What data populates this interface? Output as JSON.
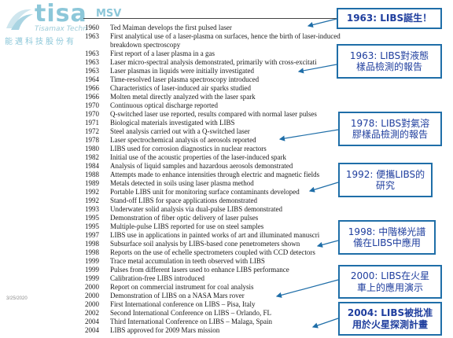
{
  "logo": {
    "wordmark": "tisa",
    "wordmark_suffix": "MSV",
    "tagline": "Tisamax Techn",
    "company_cn": "能邁科技股份有"
  },
  "footer": {
    "date": "3/25/2020"
  },
  "timeline": [
    {
      "year": "1960",
      "event": "Ted Maiman develops the first pulsed laser"
    },
    {
      "year": "1963",
      "event": "First analytical use of a laser-plasma on surfaces, hence the birth of laser-induced"
    },
    {
      "year": "",
      "event": "breakdown spectroscopy"
    },
    {
      "year": "1963",
      "event": "First report of a laser plasma in a gas"
    },
    {
      "year": "1963",
      "event": "Laser micro-spectral analysis demonstrated, primarily with cross-excitati"
    },
    {
      "year": "1963",
      "event": "Laser plasmas in liquids were initially investigated"
    },
    {
      "year": "1964",
      "event": "Time-resolved laser plasma spectroscopy introduced"
    },
    {
      "year": "1966",
      "event": "Characteristics of laser-induced air sparks studied"
    },
    {
      "year": "1966",
      "event": "Molten metal directly analyzed with the laser spark"
    },
    {
      "year": "1970",
      "event": "Continuous optical discharge reported"
    },
    {
      "year": "1970",
      "event": "Q-switched laser use reported, results compared with normal laser pulses"
    },
    {
      "year": "1971",
      "event": "Biological materials investigated with LIBS"
    },
    {
      "year": "1972",
      "event": "Steel analysis carried out with a Q-switched laser"
    },
    {
      "year": "1978",
      "event": "Laser spectrochemical analysis of aerosols reported"
    },
    {
      "year": "1980",
      "event": "LIBS used for corrosion diagnostics in nuclear reactors"
    },
    {
      "year": "1982",
      "event": "Initial use of the acoustic properties of the laser-induced spark"
    },
    {
      "year": "1984",
      "event": "Analysis of liquid samples and hazardous aerosols demonstrated"
    },
    {
      "year": "1988",
      "event": "Attempts made to enhance intensities through electric and magnetic fields"
    },
    {
      "year": "1989",
      "event": "Metals detected in soils using laser plasma method"
    },
    {
      "year": "1992",
      "event": "Portable LIBS unit for monitoring surface contaminants developed"
    },
    {
      "year": "1992",
      "event": "Stand-off LIBS for space applications demonstrated"
    },
    {
      "year": "1993",
      "event": "Underwater solid analysis via dual-pulse LIBS demonstrated"
    },
    {
      "year": "1995",
      "event": "Demonstration of fiber optic delivery of laser pulses"
    },
    {
      "year": "1995",
      "event": "Multiple-pulse LIBS reported for use on steel samples"
    },
    {
      "year": "1997",
      "event": "LIBS use in applications in painted works of art and illuminated manuscri"
    },
    {
      "year": "1998",
      "event": "Subsurface soil analysis by LIBS-based cone penetrometers shown"
    },
    {
      "year": "1998",
      "event": "Reports on the use of echelle spectrometers coupled with CCD detectors"
    },
    {
      "year": "1999",
      "event": "Trace metal accumulation in teeth observed with LIBS"
    },
    {
      "year": "1999",
      "event": "Pulses from different lasers used to enhance LIBS performance"
    },
    {
      "year": "1999",
      "event": "Calibration-free LIBS introduced"
    },
    {
      "year": "2000",
      "event": "Report on commercial instrument for coal analysis"
    },
    {
      "year": "2000",
      "event": "Demonstration of LIBS on a NASA Mars rover"
    },
    {
      "year": "2000",
      "event": "First International conference on LIBS – Pisa, Italy"
    },
    {
      "year": "2002",
      "event": "Second International Conference on LIBS – Orlando, FL"
    },
    {
      "year": "2004",
      "event": "Third International Conference on LIBS – Malaga, Spain"
    },
    {
      "year": "2004",
      "event": "LIBS approved for 2009 Mars mission"
    }
  ],
  "callouts": {
    "c1963": "1963: LIBS誕生！",
    "c1963b_l1": "1963: LIBS對液態",
    "c1963b_l2": "樣品檢測的報告",
    "c1978_l1": "1978: LIBS對氣溶",
    "c1978_l2": "膠樣品檢測的報告",
    "c1992_l1": "1992: 便攜LIBS的",
    "c1992_l2": "研究",
    "c1998_l1": "1998: 中階梯光譜",
    "c1998_l2": "儀在LIBS中應用",
    "c2000_l1": "2000: LIBS在火星",
    "c2000_l2": "車上的應用演示",
    "c2004_l1": "2004: LIBS被批准",
    "c2004_l2": "用於火星探測計畫"
  },
  "colors": {
    "accent": "#1f6ea8",
    "callout_text": "#1f3e9e",
    "logo": "#8cc7d9"
  }
}
